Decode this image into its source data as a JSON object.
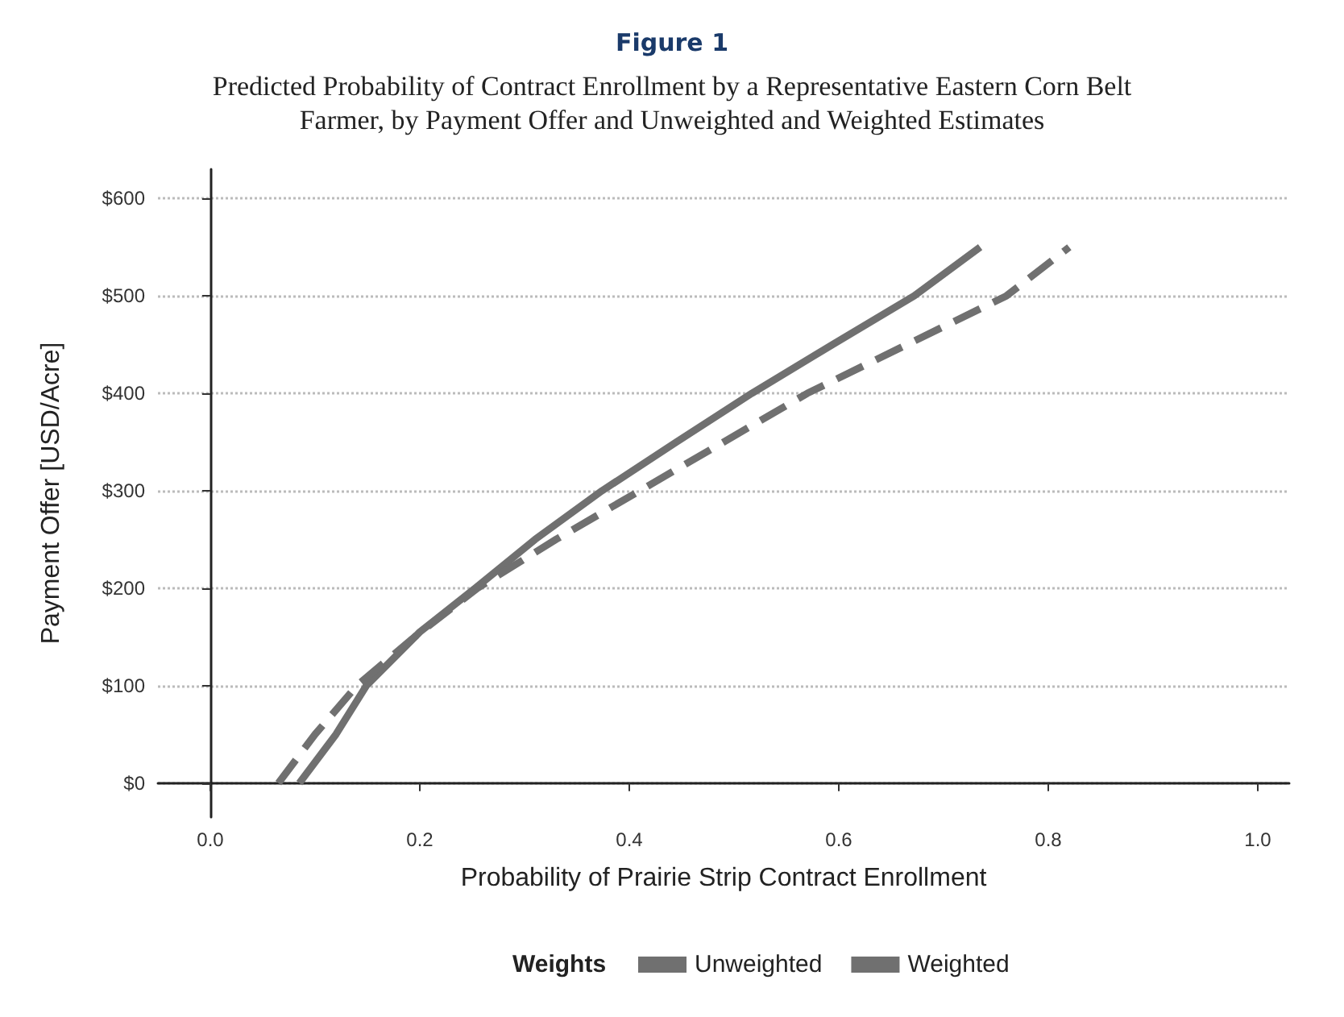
{
  "chart_data": {
    "type": "line",
    "title": "Figure 1",
    "subtitle": "Predicted Probability of Contract Enrollment by a Representative Eastern Corn Belt\nFarmer, by Payment Offer and Unweighted and Weighted Estimates",
    "xlabel": "Probability of Prairie Strip Contract Enrollment",
    "ylabel": "Payment Offer [USD/Acre]",
    "legend_title": "Weights",
    "legend": "bottom",
    "grid": "y",
    "marker": "none",
    "xlim": [
      -0.05,
      1.03
    ],
    "ylim": [
      -35,
      630
    ],
    "xticks": [
      {
        "value": 0,
        "label": "0.0"
      },
      {
        "value": 0.2,
        "label": "0.2"
      },
      {
        "value": 0.4,
        "label": "0.4"
      },
      {
        "value": 0.6,
        "label": "0.6"
      },
      {
        "value": 0.8,
        "label": "0.8"
      },
      {
        "value": 1,
        "label": "1.0"
      }
    ],
    "yticks": [
      {
        "value": 0,
        "label": "$0"
      },
      {
        "value": 100,
        "label": "$100"
      },
      {
        "value": 200,
        "label": "$200"
      },
      {
        "value": 300,
        "label": "$300"
      },
      {
        "value": 400,
        "label": "$400"
      },
      {
        "value": 500,
        "label": "$500"
      },
      {
        "value": 600,
        "label": "$600"
      }
    ],
    "series": [
      {
        "name": "Unweighted",
        "color": "#707070",
        "line_style": "solid",
        "x": [
          0.085,
          0.12,
          0.149,
          0.2,
          0.253,
          0.31,
          0.374,
          0.445,
          0.517,
          0.594,
          0.672,
          0.735
        ],
        "values": [
          0,
          50,
          100,
          155,
          200,
          250,
          300,
          350,
          400,
          450,
          500,
          550
        ]
      },
      {
        "name": "Weighted",
        "color": "#707070",
        "line_style": "dashed",
        "x": [
          0.065,
          0.1,
          0.14,
          0.195,
          0.255,
          0.33,
          0.41,
          0.49,
          0.57,
          0.665,
          0.76,
          0.82
        ],
        "values": [
          0,
          50,
          100,
          150,
          200,
          250,
          300,
          350,
          400,
          450,
          500,
          550
        ]
      }
    ]
  }
}
